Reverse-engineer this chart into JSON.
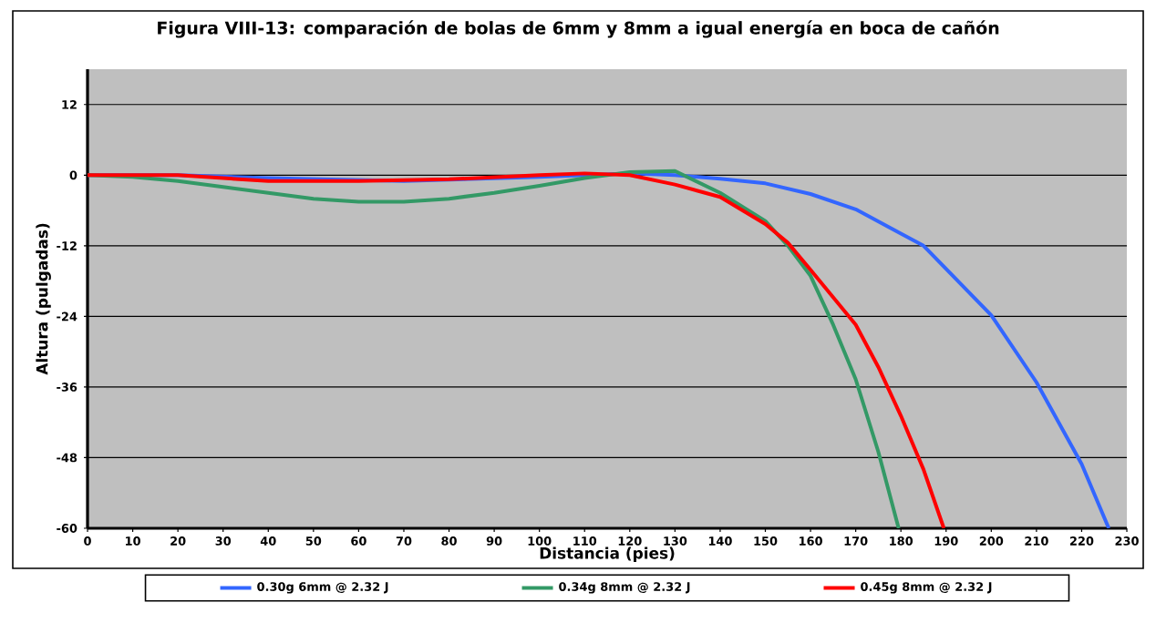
{
  "chart_data": {
    "type": "line",
    "title": "Figura VIII-13: comparación de bolas de 6mm y 8mm a igual energía en boca de cañón",
    "xlabel": "Distancia (pies)",
    "ylabel": "Altura (pulgadas)",
    "xlim": [
      0,
      230
    ],
    "xticks": [
      0,
      10,
      20,
      30,
      40,
      50,
      60,
      70,
      80,
      90,
      100,
      110,
      120,
      130,
      140,
      150,
      160,
      170,
      180,
      190,
      200,
      210,
      220,
      230
    ],
    "ylim": [
      -60,
      18
    ],
    "yticks": [
      -60,
      -48,
      -36,
      -24,
      -12,
      0,
      12
    ],
    "grid": "y",
    "legend": "bottom",
    "marker": "none",
    "line_style": "solid",
    "series": [
      {
        "name": "0.30g 6mm @ 2.32 J",
        "color": "#3366ff",
        "x": [
          0,
          20,
          40,
          70,
          100,
          120,
          130,
          140,
          150,
          160,
          170,
          185,
          200,
          210,
          220,
          226
        ],
        "values": [
          0,
          0,
          -0.5,
          -1,
          -0.3,
          0.3,
          0,
          -0.6,
          -1.4,
          -3.2,
          -5.8,
          -12,
          -23.8,
          -35.2,
          -49.1,
          -60
        ]
      },
      {
        "name": "0.34g 8mm @ 2.32 J",
        "color": "#339966",
        "x": [
          0,
          10,
          20,
          30,
          40,
          50,
          60,
          70,
          80,
          90,
          100,
          110,
          120,
          130,
          140,
          150,
          155,
          160,
          165,
          170,
          175,
          179.5
        ],
        "values": [
          0,
          -0.3,
          -1,
          -2,
          -3,
          -4,
          -4.5,
          -4.5,
          -4,
          -3,
          -1.8,
          -0.5,
          0.5,
          0.7,
          -3,
          -7.8,
          -12,
          -17.1,
          -25.4,
          -34.7,
          -47,
          -60
        ]
      },
      {
        "name": "0.45g 8mm @ 2.32 J",
        "color": "#ff0000",
        "x": [
          0,
          20,
          40,
          60,
          80,
          100,
          110,
          120,
          130,
          140,
          150,
          155,
          160,
          170,
          175,
          180,
          185,
          189.5
        ],
        "values": [
          0,
          0,
          -1,
          -1,
          -0.7,
          0,
          0.3,
          0,
          -1.6,
          -3.7,
          -8.3,
          -11.5,
          -16.1,
          -25.4,
          -32.6,
          -40.9,
          -50,
          -60
        ]
      }
    ]
  }
}
